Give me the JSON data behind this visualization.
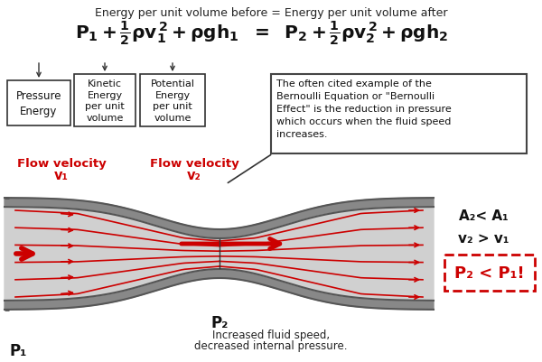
{
  "bg_color": "#ffffff",
  "title_text": "Energy per unit volume before = Energy per unit volume after",
  "box1_lines": [
    "Pressure",
    "Energy"
  ],
  "box2_lines": [
    "Kinetic",
    "Energy",
    "per unit",
    "volume"
  ],
  "box3_lines": [
    "Potential",
    "Energy",
    "per unit",
    "volume"
  ],
  "flow1_label": "Flow velocity",
  "flow1_sub": "v₁",
  "flow2_label": "Flow velocity",
  "flow2_sub": "v₂",
  "note_text": "The often cited example of the\nBernoulli Equation or \"Bernoulli\nEffect\" is the reduction in pressure\nwhich occurs when the fluid speed\nincreases.",
  "right_text1": "A₂< A₁",
  "right_text2": "v₂ > v₁",
  "right_text3": "P₂ < P₁!",
  "p1_label": "P₁",
  "p2_label": "P₂",
  "bottom_text1": "Increased fluid speed,",
  "bottom_text2": "decreased internal pressure.",
  "red_color": "#cc0000",
  "tube_gray_outer": "#999999",
  "tube_gray_inner": "#cccccc",
  "tube_dark": "#555555",
  "tube_wall_color": "#888888"
}
